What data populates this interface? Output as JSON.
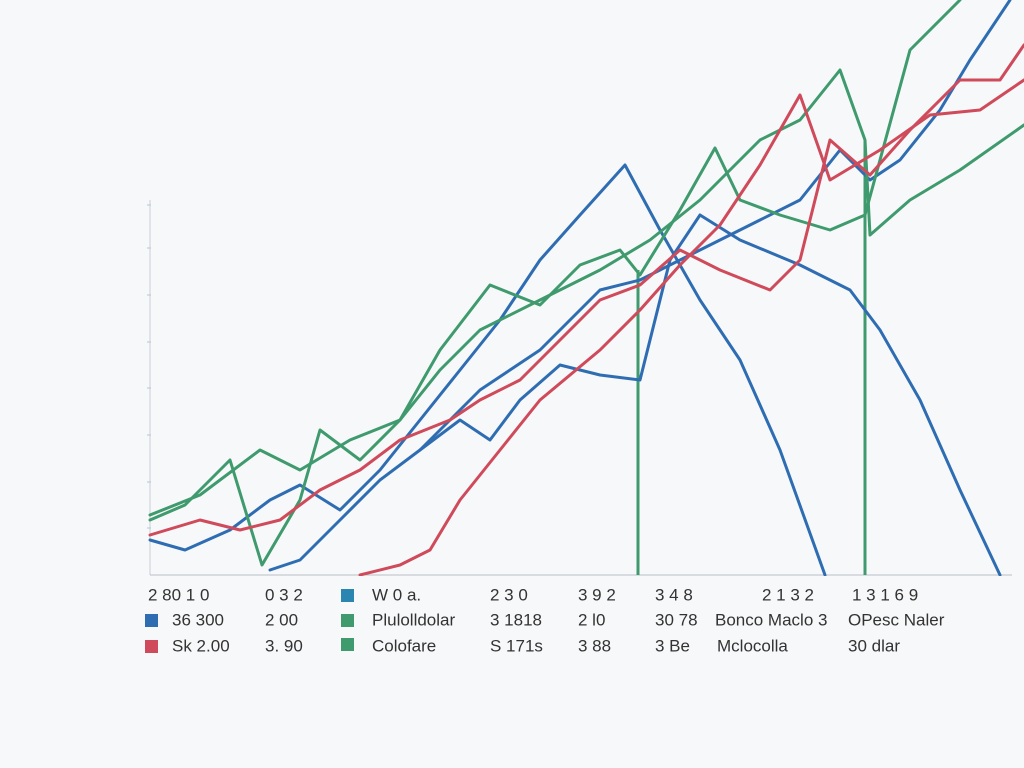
{
  "chart_data": {
    "type": "line",
    "xlim": [
      0,
      874
    ],
    "ylim": [
      0,
      575
    ],
    "yticks": [
      47,
      93,
      140,
      187,
      233,
      280,
      327,
      370
    ],
    "series": [
      {
        "color": "#2f6db3",
        "x": [
          0,
          35,
          80,
          120,
          150,
          190,
          230,
          270,
          310,
          350,
          390,
          430,
          475,
          510,
          550,
          590,
          630,
          675
        ],
        "values": [
          35,
          25,
          45,
          75,
          90,
          65,
          105,
          155,
          205,
          255,
          315,
          360,
          410,
          345,
          275,
          215,
          125,
          0
        ]
      },
      {
        "color": "#2f6db3",
        "x": [
          120,
          150,
          190,
          230,
          270,
          310,
          340,
          370,
          410,
          450,
          490,
          520,
          550,
          590,
          650,
          700,
          730,
          770,
          810,
          850
        ],
        "values": [
          5,
          15,
          55,
          95,
          125,
          155,
          135,
          175,
          210,
          200,
          195,
          315,
          360,
          335,
          310,
          285,
          245,
          175,
          85,
          0
        ]
      },
      {
        "color": "#2f6db3",
        "x": [
          270,
          330,
          390,
          450,
          490,
          550,
          610,
          650,
          690,
          720,
          750,
          790,
          820,
          860
        ],
        "values": [
          125,
          185,
          225,
          285,
          295,
          325,
          355,
          375,
          425,
          395,
          415,
          465,
          515,
          575
        ]
      },
      {
        "color": "#3f9a6e",
        "x": [
          0,
          35,
          80,
          112,
          150,
          170,
          210,
          250,
          290,
          340,
          390,
          430,
          470,
          490,
          530,
          565,
          590,
          630,
          680,
          715,
          760,
          810
        ],
        "values": [
          55,
          70,
          115,
          10,
          75,
          145,
          115,
          155,
          225,
          290,
          270,
          310,
          325,
          300,
          365,
          427,
          375,
          360,
          345,
          360,
          525,
          575
        ]
      },
      {
        "color": "#3f9a6e",
        "x": [
          0,
          50,
          110,
          150,
          200,
          250,
          290,
          330,
          390,
          450,
          500,
          550,
          610,
          650,
          690,
          715,
          720,
          760,
          810,
          874
        ],
        "values": [
          60,
          80,
          125,
          105,
          135,
          155,
          205,
          245,
          275,
          305,
          335,
          375,
          435,
          455,
          505,
          435,
          340,
          375,
          405,
          450
        ]
      },
      {
        "color": "#cf4a5a",
        "x": [
          0,
          50,
          90,
          130,
          170,
          210,
          250,
          300,
          330,
          370,
          410,
          450,
          490,
          530,
          570,
          620,
          650,
          680,
          720,
          760,
          810,
          850,
          874
        ],
        "values": [
          40,
          55,
          45,
          55,
          85,
          105,
          135,
          155,
          175,
          195,
          235,
          275,
          290,
          325,
          305,
          285,
          315,
          435,
          400,
          445,
          495,
          495,
          530
        ]
      },
      {
        "color": "#cf4a5a",
        "x": [
          210,
          250,
          280,
          310,
          350,
          390,
          450,
          490,
          530,
          570,
          610,
          650,
          680,
          730,
          780,
          830,
          874
        ],
        "values": [
          0,
          10,
          25,
          75,
          125,
          175,
          225,
          265,
          310,
          350,
          410,
          480,
          395,
          425,
          460,
          465,
          495
        ]
      }
    ],
    "reference_lines": {
      "color": "#3f9a6e",
      "x": [
        488,
        715
      ],
      "values": [
        305,
        435
      ]
    },
    "annotation_rows": [
      [
        "2 80 1 0",
        "0 3 2",
        "W 0 a.",
        "2 3 0",
        "3 9 2",
        "3 4 8",
        "2 1 3 2",
        "1 3 1 6 9"
      ],
      [
        "36 300",
        "2 00",
        "Plulolldolar",
        "3 1818",
        "2 l0",
        "30 78",
        "Bonco Maclo 3",
        "OPesc Naler"
      ],
      [
        "Sk 2.00",
        "3. 90",
        "Colofare",
        "S 171s",
        "3 88",
        "3 Be",
        "Mclocolla",
        "30 dlar"
      ]
    ]
  }
}
